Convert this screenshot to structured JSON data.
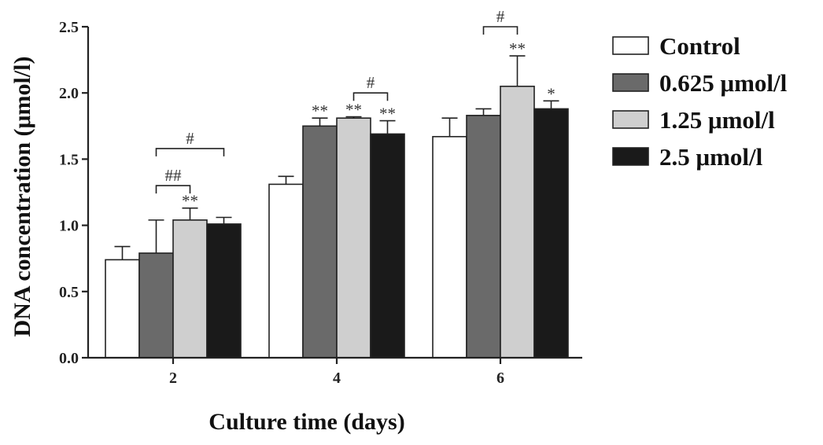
{
  "chart_data": {
    "type": "bar",
    "title": "",
    "xlabel": "Culture time (days)",
    "ylabel": "DNA concentration (μmol/l)",
    "ylim": [
      0,
      2.5
    ],
    "yticks": [
      "0.0",
      "0.5",
      "1.0",
      "1.5",
      "2.0",
      "2.5"
    ],
    "categories": [
      "2",
      "4",
      "6"
    ],
    "legend_position": "right",
    "grid": false,
    "series": [
      {
        "name": "Control",
        "color": "#ffffff",
        "values": [
          0.74,
          1.31,
          1.67
        ],
        "errors": [
          0.1,
          0.06,
          0.14
        ],
        "sig": [
          "",
          "",
          ""
        ]
      },
      {
        "name": "0.625 μmol/l",
        "color": "#6a6a6a",
        "values": [
          0.79,
          1.75,
          1.83
        ],
        "errors": [
          0.25,
          0.06,
          0.05
        ],
        "sig": [
          "",
          "**",
          ""
        ]
      },
      {
        "name": "1.25 μmol/l",
        "color": "#cfcfcf",
        "values": [
          1.04,
          1.81,
          2.05
        ],
        "errors": [
          0.09,
          0.01,
          0.23
        ],
        "sig": [
          "**",
          "**",
          "**"
        ]
      },
      {
        "name": "2.5 μmol/l",
        "color": "#1a1a1a",
        "values": [
          1.01,
          1.69,
          1.88
        ],
        "errors": [
          0.05,
          0.1,
          0.06
        ],
        "sig": [
          "",
          "**",
          "*"
        ]
      }
    ],
    "comparisons": [
      {
        "group": 0,
        "from": 1,
        "to": 2,
        "label": "##",
        "level": 1.3
      },
      {
        "group": 0,
        "from": 1,
        "to": 3,
        "label": "#",
        "level": 1.58
      },
      {
        "group": 1,
        "from": 2,
        "to": 3,
        "label": "#",
        "level": 2.0
      },
      {
        "group": 2,
        "from": 1,
        "to": 2,
        "label": "#",
        "level": 2.5
      }
    ]
  }
}
